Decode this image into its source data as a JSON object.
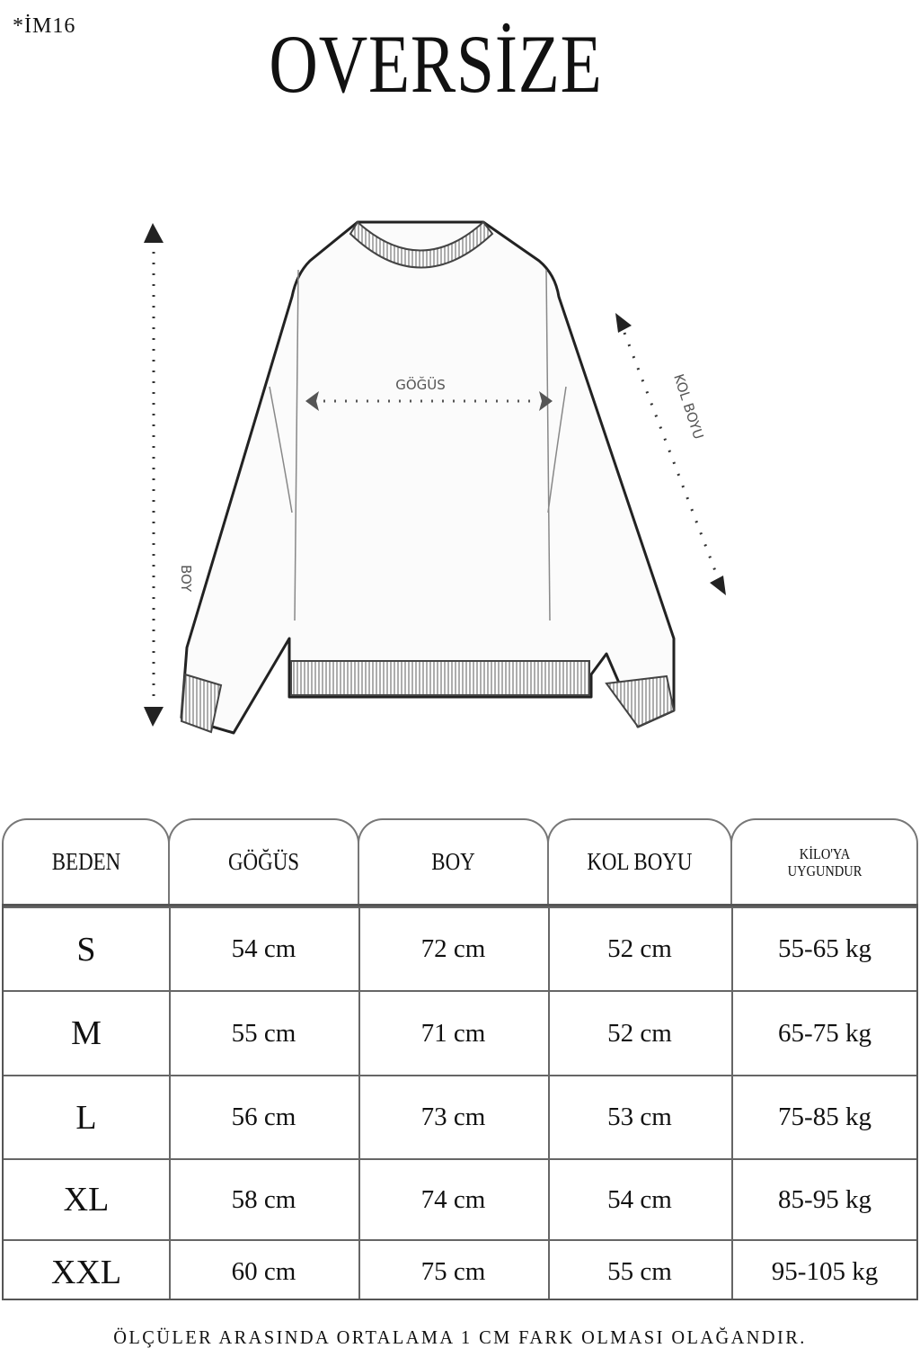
{
  "code": "*İM16",
  "title": "OVERSİZE",
  "diagram": {
    "chest_label": "GÖĞÜS",
    "length_label": "BOY",
    "sleeve_label": "KOL BOYU"
  },
  "table": {
    "headers": [
      "BEDEN",
      "GÖĞÜS",
      "BOY",
      "KOL BOYU",
      "KİLO'YA UYGUNDUR"
    ],
    "rows": [
      {
        "size": "S",
        "chest": "54 cm",
        "length": "72 cm",
        "sleeve": "52  cm",
        "weight": "55-65 kg"
      },
      {
        "size": "M",
        "chest": "55 cm",
        "length": "71 cm",
        "sleeve": "52 cm",
        "weight": "65-75 kg"
      },
      {
        "size": "L",
        "chest": "56 cm",
        "length": "73 cm",
        "sleeve": "53 cm",
        "weight": "75-85 kg"
      },
      {
        "size": "XL",
        "chest": "58 cm",
        "length": "74 cm",
        "sleeve": "54 cm",
        "weight": "85-95 kg"
      },
      {
        "size": "XXL",
        "chest": "60 cm",
        "length": "75 cm",
        "sleeve": "55 cm",
        "weight": "95-105 kg"
      }
    ]
  },
  "note": "ÖLÇÜLER ARASINDA ORTALAMA 1 CM FARK OLMASI OLAĞANDIR."
}
